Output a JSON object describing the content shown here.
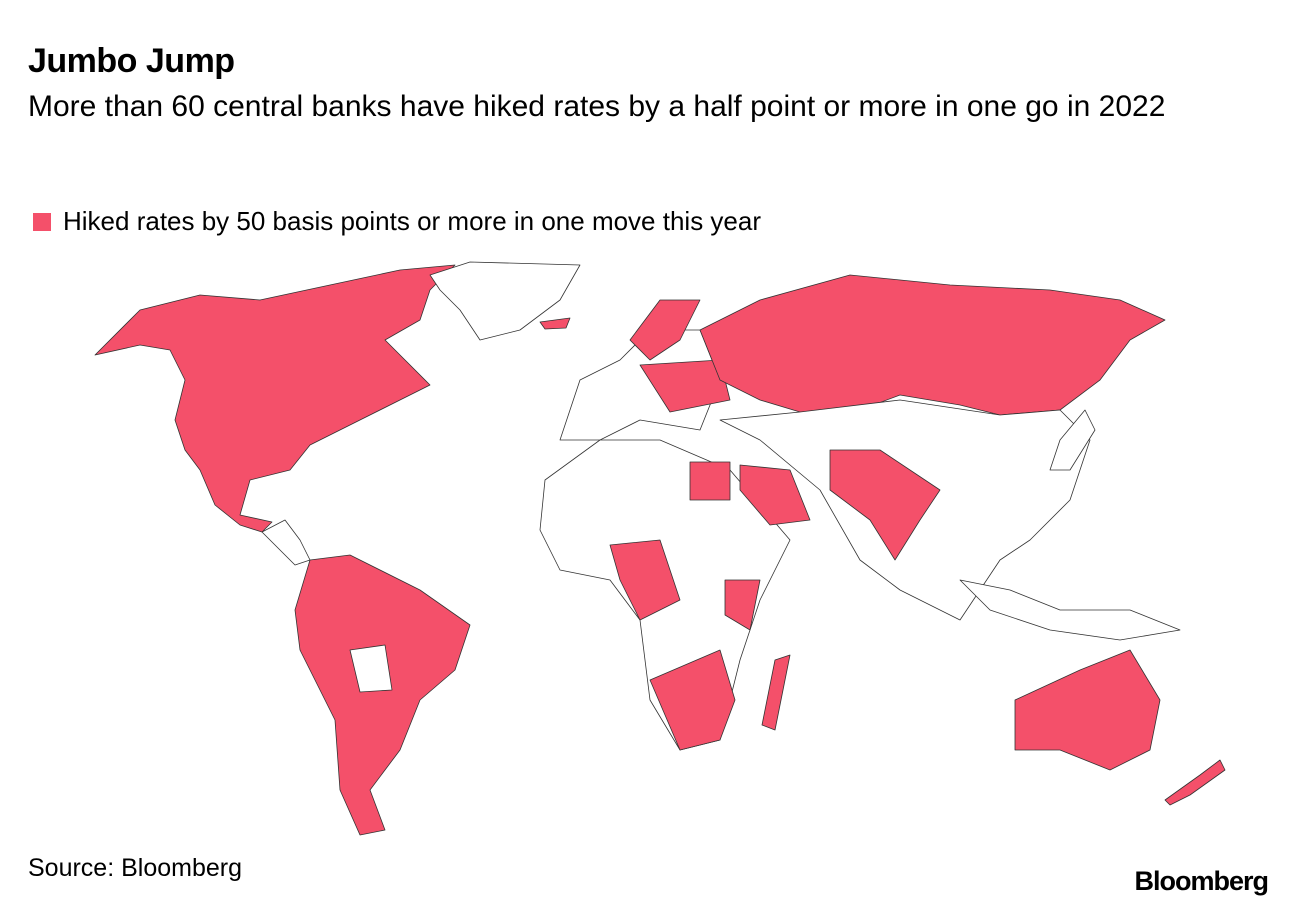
{
  "header": {
    "title": "Jumbo Jump",
    "subtitle": "More than 60 central banks have hiked rates by a half point or more in one go in 2022"
  },
  "legend": {
    "label": "Hiked rates by 50 basis points or more in one move this year",
    "color": "#f4506a"
  },
  "footer": {
    "source": "Source: Bloomberg",
    "logo": "Bloomberg"
  }
}
